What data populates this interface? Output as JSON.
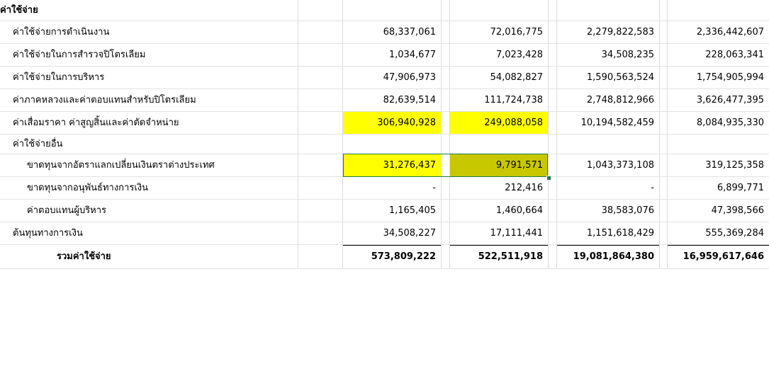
{
  "header": {
    "label": "ค่าใช้จ่าย"
  },
  "rows": [
    {
      "label": "ค่าใช้จ่ายการดำเนินงาน",
      "indent": 1,
      "v1": "68,337,061",
      "v2": "72,016,775",
      "v3": "2,279,822,583",
      "v4": "2,336,442,607"
    },
    {
      "label": "ค่าใช้จ่ายในการสำรวจปิโตรเลียม",
      "indent": 1,
      "v1": "1,034,677",
      "v2": "7,023,428",
      "v3": "34,508,235",
      "v4": "228,063,341"
    },
    {
      "label": "ค่าใช้จ่ายในการบริหาร",
      "indent": 1,
      "v1": "47,906,973",
      "v2": "54,082,827",
      "v3": "1,590,563,524",
      "v4": "1,754,905,994"
    },
    {
      "label": "ค่าภาคหลวงและค่าตอบแทนสำหรับปิโตรเลียม",
      "indent": 1,
      "v1": "82,639,514",
      "v2": "111,724,738",
      "v3": "2,748,812,966",
      "v4": "3,626,477,395"
    },
    {
      "label": "ค่าเสื่อมราคา ค่าสูญสิ้นและค่าตัดจำหน่าย",
      "indent": 1,
      "v1": "306,940,928",
      "v2": "249,088,058",
      "v3": "10,194,582,459",
      "v4": "8,084,935,330"
    },
    {
      "label": "ค่าใช้จ่ายอื่น",
      "indent": 1,
      "v1": "",
      "v2": "",
      "v3": "",
      "v4": ""
    },
    {
      "label": "ขาดทุนจากอัตราแลกเปลี่ยนเงินตราต่างประเทศ",
      "indent": 2,
      "v1": "31,276,437",
      "v2": "9,791,571",
      "v3": "1,043,373,108",
      "v4": "319,125,358"
    },
    {
      "label": "ขาดทุนจากอนุพันธ์ทางการเงิน",
      "indent": 2,
      "v1": "-",
      "v2": "212,416",
      "v3": "-",
      "v4": "6,899,771"
    },
    {
      "label": "ค่าตอบแทนผู้บริหาร",
      "indent": 2,
      "v1": "1,165,405",
      "v2": "1,460,664",
      "v3": "38,583,076",
      "v4": "47,398,566"
    },
    {
      "label": "ต้นทุนทางการเงิน",
      "indent": 1,
      "v1": "34,508,227",
      "v2": "17,111,441",
      "v3": "1,151,618,429",
      "v4": "555,369,284"
    }
  ],
  "total": {
    "label": "รวมค่าใช้จ่าย",
    "v1": "573,809,222",
    "v2": "522,511,918",
    "v3": "19,081,864,380",
    "v4": "16,959,617,646"
  },
  "colors": {
    "highlight_yellow": "#ffff00",
    "highlight_olive": "#c8c800",
    "selection_border": "#1f7a48",
    "gridline": "#dadce0"
  }
}
